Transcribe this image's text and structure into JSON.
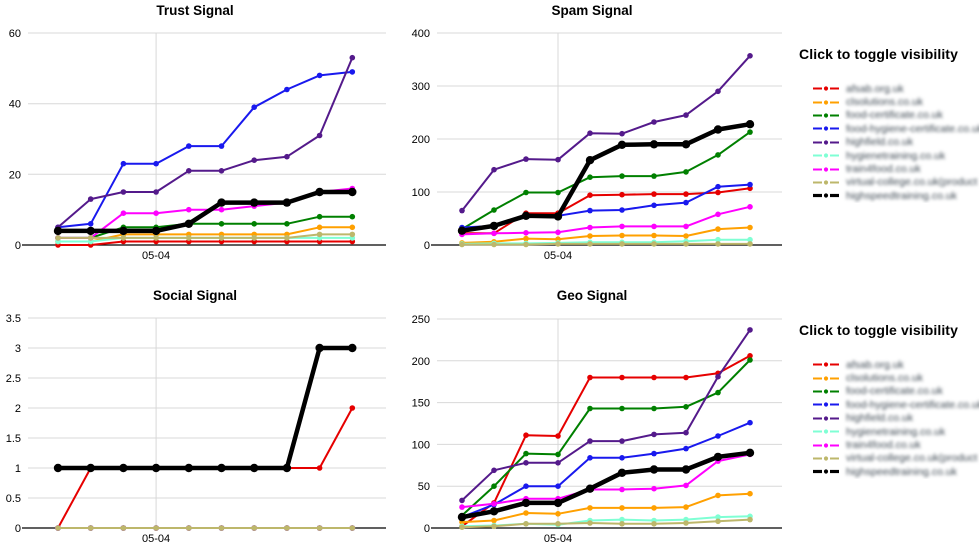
{
  "page": {
    "background": "#ffffff",
    "grid_color": "#d8d8d8",
    "axis_color": "#000000"
  },
  "legend": {
    "title": "Click to toggle visibility"
  },
  "chart_data": [
    {
      "type": "line",
      "title": "Trust Signal",
      "x_axis": {
        "tick_label": "05-04",
        "tick_index": 3,
        "num_points": 10
      },
      "ylim": [
        0,
        60
      ],
      "yticks": [
        0,
        20,
        40,
        60
      ],
      "grid": true,
      "legend_position": "right",
      "series": [
        {
          "name": "afsab.org.uk",
          "color": "#e60000",
          "values": [
            0,
            0,
            1,
            1,
            1,
            1,
            1,
            1,
            1,
            1
          ]
        },
        {
          "name": "clsolutions.co.uk",
          "color": "#ffa000",
          "values": [
            1,
            1,
            3,
            3,
            3,
            3,
            3,
            3,
            5,
            5
          ]
        },
        {
          "name": "food-certificate.co.uk",
          "color": "#008000",
          "values": [
            2,
            2,
            5,
            5,
            6,
            6,
            6,
            6,
            8,
            8
          ]
        },
        {
          "name": "food-hygiene-certificate.co.uk",
          "color": "#1919ee",
          "values": [
            5,
            6,
            23,
            23,
            28,
            28,
            39,
            44,
            48,
            49
          ]
        },
        {
          "name": "highfield.co.uk",
          "color": "#541a8b",
          "values": [
            5,
            13,
            15,
            15,
            21,
            21,
            24,
            25,
            31,
            53
          ]
        },
        {
          "name": "hygienetraining.co.uk",
          "color": "#7fffd4",
          "values": [
            1,
            1,
            2,
            2,
            2,
            2,
            2,
            2,
            2,
            2
          ]
        },
        {
          "name": "train4food.co.uk",
          "color": "#ff00ff",
          "values": [
            2,
            2,
            9,
            9,
            10,
            10,
            11,
            12,
            15,
            16
          ]
        },
        {
          "name": "virtual-college.co.uk(product",
          "color": "#bdb76b",
          "values": [
            2,
            2,
            2,
            2,
            2,
            2,
            2,
            2,
            3,
            3
          ]
        },
        {
          "name": "highspeedtraining.co.uk",
          "color": "#000000",
          "values": [
            4,
            4,
            4,
            4,
            6,
            12,
            12,
            12,
            15,
            15
          ],
          "emphasis": true
        }
      ]
    },
    {
      "type": "line",
      "title": "Spam Signal",
      "x_axis": {
        "tick_label": "05-04",
        "tick_index": 3,
        "num_points": 10
      },
      "ylim": [
        0,
        400
      ],
      "yticks": [
        0,
        100,
        200,
        300,
        400
      ],
      "grid": true,
      "legend_position": "right",
      "series": [
        {
          "name": "afsab.org.uk",
          "color": "#e60000",
          "values": [
            22,
            22,
            60,
            60,
            94,
            95,
            96,
            96,
            99,
            107
          ]
        },
        {
          "name": "clsolutions.co.uk",
          "color": "#ffa000",
          "values": [
            4,
            6,
            12,
            11,
            17,
            18,
            18,
            17,
            30,
            33
          ]
        },
        {
          "name": "food-certificate.co.uk",
          "color": "#008000",
          "values": [
            30,
            66,
            99,
            99,
            128,
            130,
            130,
            138,
            170,
            213
          ]
        },
        {
          "name": "food-hygiene-certificate.co.uk",
          "color": "#1919ee",
          "values": [
            33,
            36,
            57,
            55,
            65,
            66,
            75,
            80,
            110,
            114
          ]
        },
        {
          "name": "highfield.co.uk",
          "color": "#541a8b",
          "values": [
            65,
            142,
            162,
            161,
            211,
            210,
            232,
            245,
            290,
            357
          ]
        },
        {
          "name": "hygienetraining.co.uk",
          "color": "#7fffd4",
          "values": [
            2,
            3,
            3,
            4,
            5,
            5,
            5,
            7,
            10,
            10
          ]
        },
        {
          "name": "train4food.co.uk",
          "color": "#ff00ff",
          "values": [
            20,
            22,
            23,
            24,
            33,
            35,
            35,
            35,
            58,
            72
          ]
        },
        {
          "name": "virtual-college.co.uk(product",
          "color": "#bdb76b",
          "values": [
            1,
            1,
            1,
            2,
            2,
            2,
            2,
            2,
            2,
            2
          ]
        },
        {
          "name": "highspeedtraining.co.uk",
          "color": "#000000",
          "values": [
            27,
            36,
            55,
            54,
            160,
            189,
            190,
            190,
            218,
            228
          ],
          "emphasis": true
        }
      ]
    },
    {
      "type": "line",
      "title": "Social Signal",
      "x_axis": {
        "tick_label": "05-04",
        "tick_index": 3,
        "num_points": 10
      },
      "ylim": [
        0,
        3.5
      ],
      "yticks": [
        0,
        0.5,
        1,
        1.5,
        2,
        2.5,
        3,
        3.5
      ],
      "grid": true,
      "legend_position": "right",
      "series": [
        {
          "name": "afsab.org.uk",
          "color": "#e60000",
          "values": [
            0,
            1,
            1,
            1,
            1,
            1,
            1,
            1,
            1,
            2
          ]
        },
        {
          "name": "clsolutions.co.uk",
          "color": "#ffa000",
          "values": [
            0,
            0,
            0,
            0,
            0,
            0,
            0,
            0,
            0,
            0
          ]
        },
        {
          "name": "food-certificate.co.uk",
          "color": "#008000",
          "values": [
            0,
            0,
            0,
            0,
            0,
            0,
            0,
            0,
            0,
            0
          ]
        },
        {
          "name": "food-hygiene-certificate.co.uk",
          "color": "#1919ee",
          "values": [
            0,
            0,
            0,
            0,
            0,
            0,
            0,
            0,
            0,
            0
          ]
        },
        {
          "name": "highfield.co.uk",
          "color": "#541a8b",
          "values": [
            0,
            0,
            0,
            0,
            0,
            0,
            0,
            0,
            0,
            0
          ]
        },
        {
          "name": "hygienetraining.co.uk",
          "color": "#7fffd4",
          "values": [
            0,
            0,
            0,
            0,
            0,
            0,
            0,
            0,
            0,
            0
          ]
        },
        {
          "name": "train4food.co.uk",
          "color": "#ff00ff",
          "values": [
            0,
            0,
            0,
            0,
            0,
            0,
            0,
            0,
            0,
            0
          ]
        },
        {
          "name": "virtual-college.co.uk(product",
          "color": "#bdb76b",
          "values": [
            0,
            0,
            0,
            0,
            0,
            0,
            0,
            0,
            0,
            0
          ]
        },
        {
          "name": "highspeedtraining.co.uk",
          "color": "#000000",
          "values": [
            1,
            1,
            1,
            1,
            1,
            1,
            1,
            1,
            3,
            3
          ],
          "emphasis": true
        }
      ]
    },
    {
      "type": "line",
      "title": "Geo Signal",
      "x_axis": {
        "tick_label": "05-04",
        "tick_index": 3,
        "num_points": 10
      },
      "ylim": [
        0,
        250
      ],
      "yticks": [
        0,
        50,
        100,
        150,
        200,
        250
      ],
      "grid": true,
      "legend_position": "right",
      "series": [
        {
          "name": "afsab.org.uk",
          "color": "#e60000",
          "values": [
            2,
            30,
            111,
            110,
            180,
            180,
            180,
            180,
            185,
            206
          ]
        },
        {
          "name": "clsolutions.co.uk",
          "color": "#ffa000",
          "values": [
            7,
            9,
            18,
            17,
            24,
            24,
            24,
            25,
            39,
            41
          ]
        },
        {
          "name": "food-certificate.co.uk",
          "color": "#008000",
          "values": [
            15,
            50,
            89,
            88,
            143,
            143,
            143,
            145,
            162,
            201
          ]
        },
        {
          "name": "food-hygiene-certificate.co.uk",
          "color": "#1919ee",
          "values": [
            13,
            28,
            50,
            50,
            84,
            84,
            89,
            95,
            110,
            126
          ]
        },
        {
          "name": "highfield.co.uk",
          "color": "#541a8b",
          "values": [
            33,
            69,
            78,
            78,
            104,
            104,
            112,
            114,
            181,
            237
          ]
        },
        {
          "name": "hygienetraining.co.uk",
          "color": "#7fffd4",
          "values": [
            2,
            3,
            5,
            4,
            9,
            10,
            9,
            10,
            13,
            14
          ]
        },
        {
          "name": "train4food.co.uk",
          "color": "#ff00ff",
          "values": [
            25,
            29,
            35,
            35,
            46,
            46,
            47,
            51,
            80,
            88
          ]
        },
        {
          "name": "virtual-college.co.uk(product",
          "color": "#bdb76b",
          "values": [
            1,
            2,
            5,
            5,
            6,
            5,
            5,
            6,
            8,
            10
          ]
        },
        {
          "name": "highspeedtraining.co.uk",
          "color": "#000000",
          "values": [
            13,
            20,
            30,
            30,
            47,
            66,
            70,
            70,
            85,
            90
          ],
          "emphasis": true
        }
      ]
    }
  ]
}
